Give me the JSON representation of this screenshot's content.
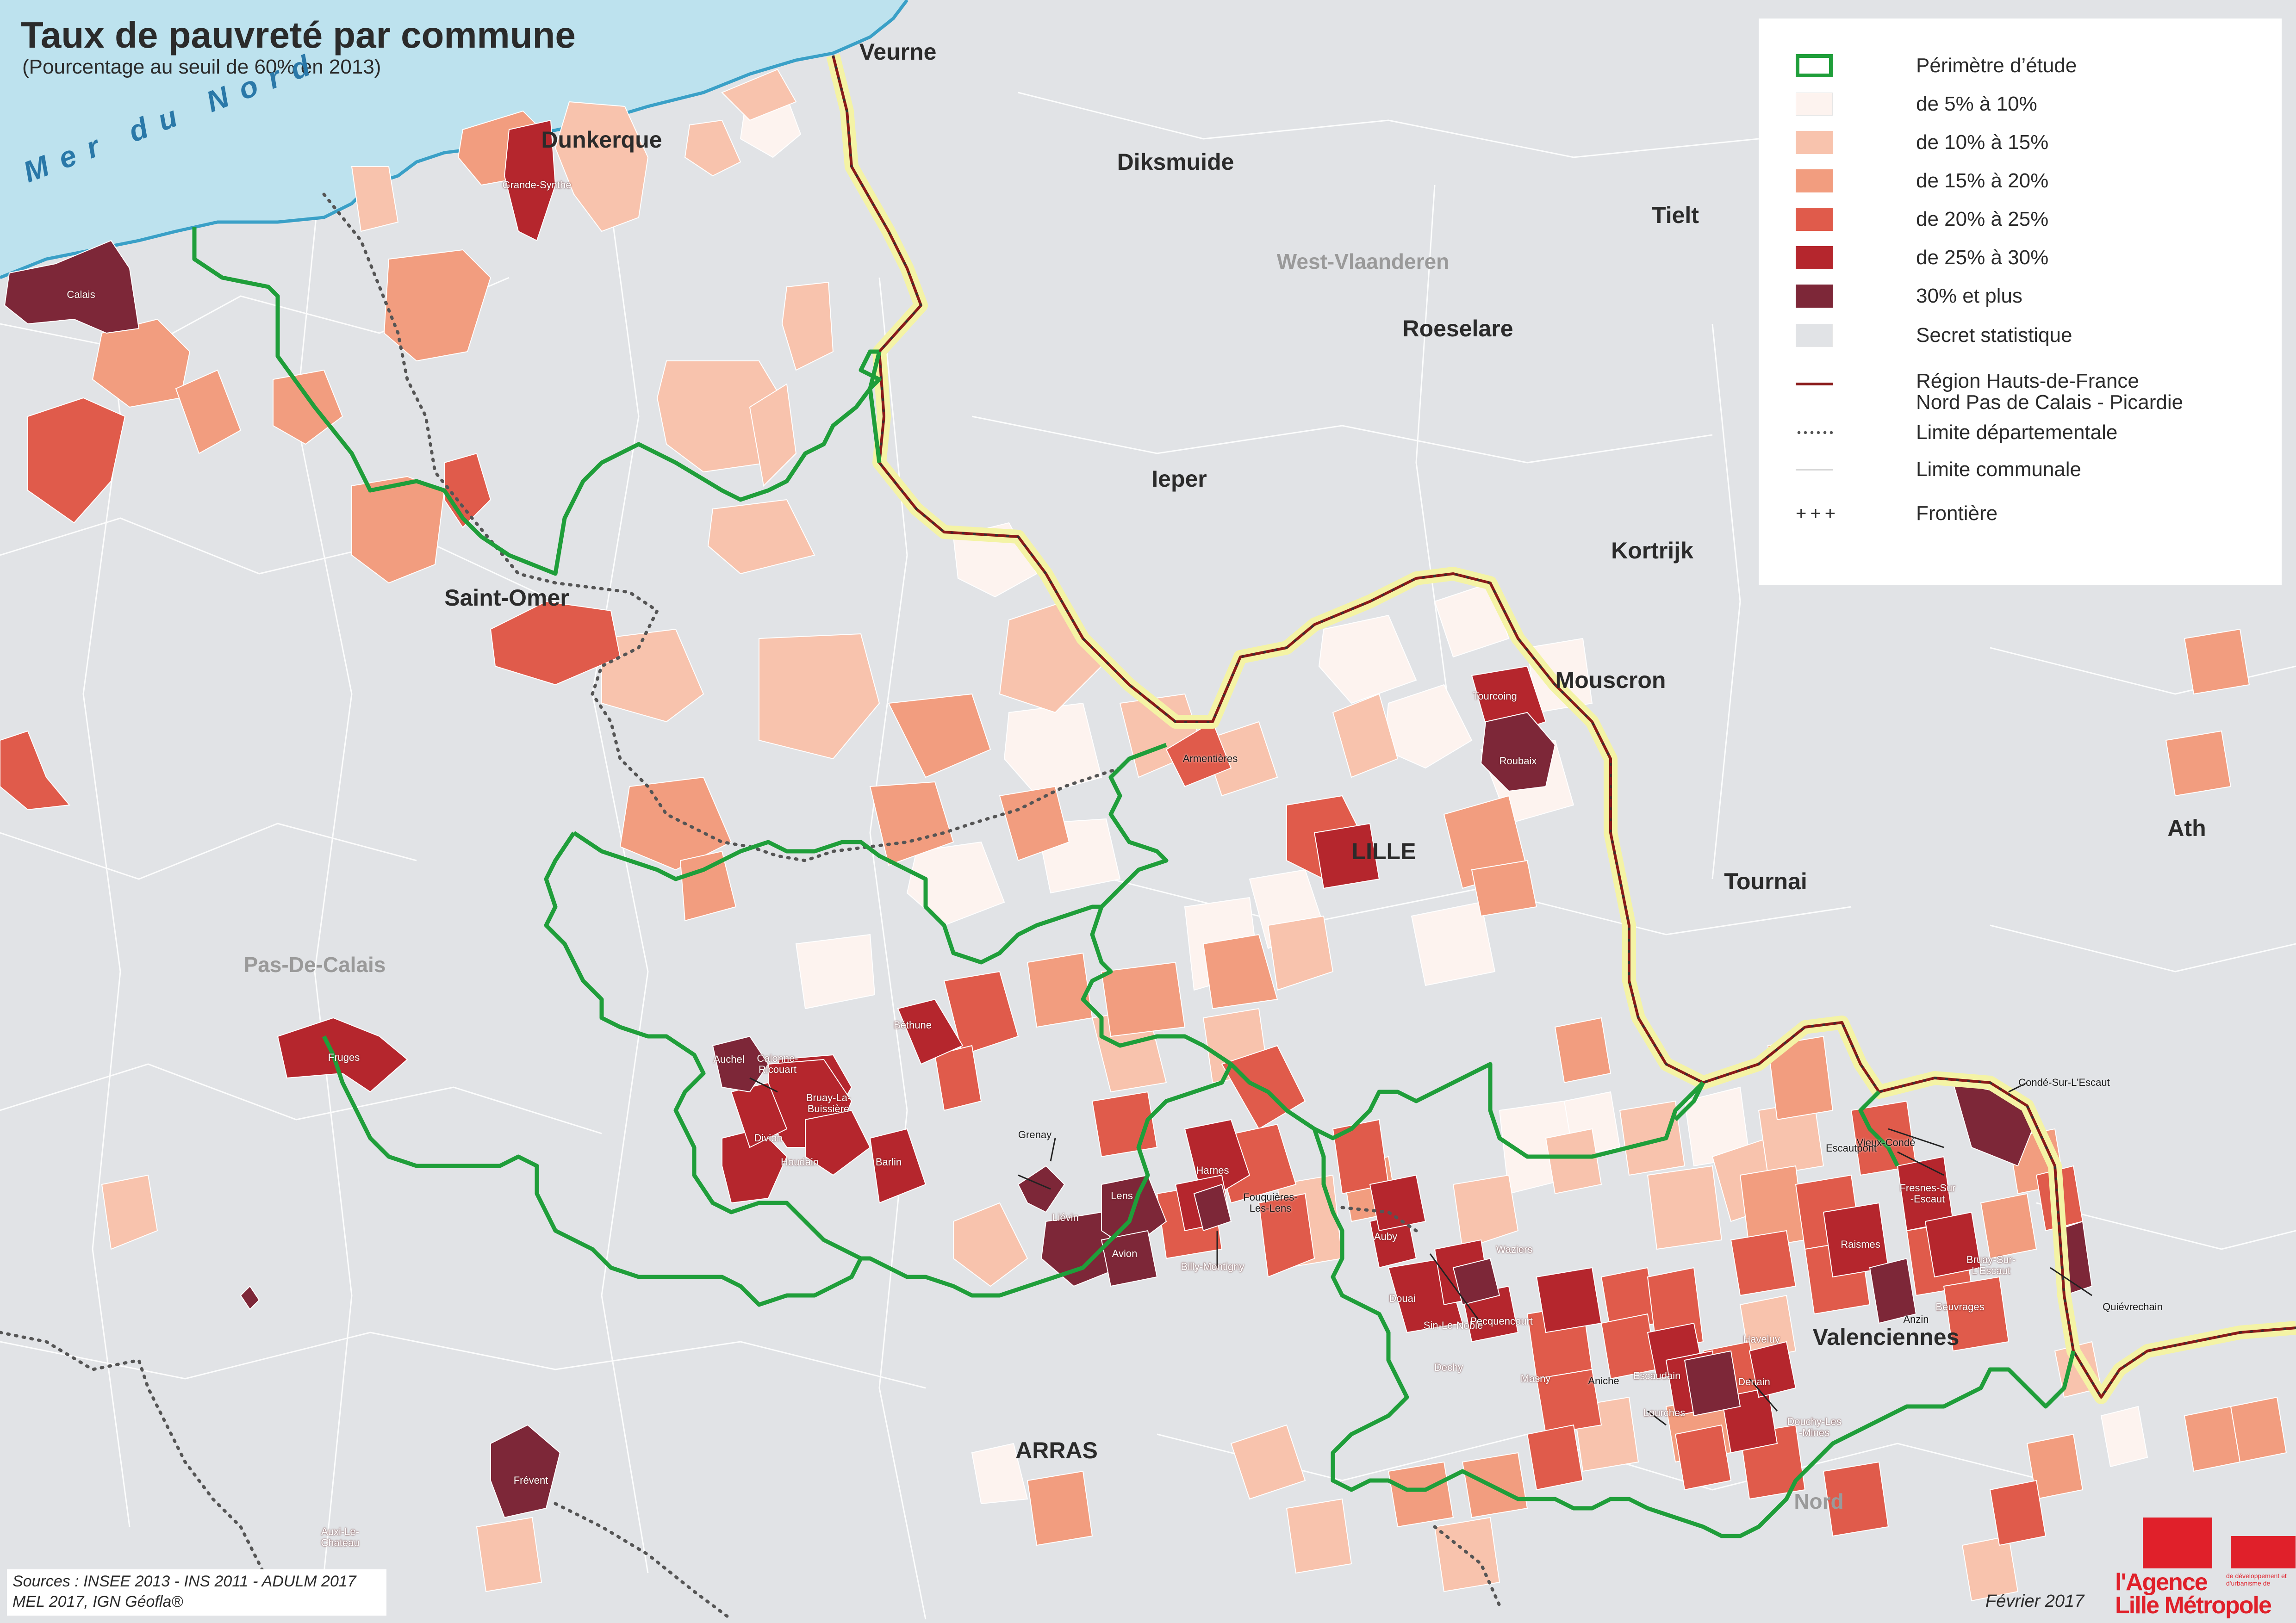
{
  "title": "Taux de pauvreté par commune",
  "subtitle": "(Pourcentage au seuil de 60% en 2013)",
  "colors": {
    "sea": "#bde2ee",
    "background": "#e1e3e6",
    "class_5_10": "#fdf3ef",
    "class_10_15": "#f8c3ad",
    "class_15_20": "#f29d7f",
    "class_20_25": "#e05b4b",
    "class_25_30": "#b5262d",
    "class_30_plus": "#7d2738",
    "secret": "#e1e3e6",
    "perimeter": "#1f9e3a",
    "region_border": "#8a1a1a",
    "frontier_glow": "#f4f3a5"
  },
  "legend": [
    {
      "key": "perimetre",
      "label": "Périmètre d’étude",
      "style": "perimeter"
    },
    {
      "key": "c1",
      "label": "de 5% à 10%",
      "style": "class_5_10"
    },
    {
      "key": "c2",
      "label": "de 10% à 15%",
      "style": "class_10_15"
    },
    {
      "key": "c3",
      "label": "de 15% à 20%",
      "style": "class_15_20"
    },
    {
      "key": "c4",
      "label": "de 20% à 25%",
      "style": "class_20_25"
    },
    {
      "key": "c5",
      "label": "de 25% à 30%",
      "style": "class_25_30"
    },
    {
      "key": "c6",
      "label": "30% et plus",
      "style": "class_30_plus"
    },
    {
      "key": "secret",
      "label": "Secret statistique",
      "style": "secret"
    },
    {
      "key": "region",
      "label": "Région Hauts-de-France",
      "label2": "Nord Pas de Calais - Picardie",
      "style": "line_region"
    },
    {
      "key": "dept",
      "label": "Limite départementale",
      "style": "line_dotted"
    },
    {
      "key": "communal",
      "label": "Limite communale",
      "style": "line_thin"
    },
    {
      "key": "frontiere",
      "label": "Frontière",
      "style": "line_cross"
    }
  ],
  "sea_label": "Mer du Nord",
  "big_labels": [
    "Veurne",
    "Dunkerque",
    "Diksmuide",
    "Tielt",
    "Roeselare",
    "Ieper",
    "Kortrijk",
    "Mouscron",
    "Saint-Omer",
    "LILLE",
    "Tournai",
    "Ath",
    "Valenciennes",
    "ARRAS"
  ],
  "region_labels": [
    "West-Vlaanderen",
    "Pas-De-Calais",
    "Nord"
  ],
  "small_labels": [
    "Grande-Synthe",
    "Calais",
    "Armentières",
    "Tourcoing",
    "Roubaix",
    "Auchel",
    "Calonne-\nRicouart",
    "Bruay-La-\nBuissière",
    "Divion",
    "Houdain",
    "Béthune",
    "Barlin",
    "Grenay",
    "Liévin",
    "Lens",
    "Avion",
    "Harnes",
    "Fouquières-\nLes-Lens",
    "Billy-Montigny",
    "Auby",
    "Waziers",
    "Douai",
    "Sin-Le-Noble",
    "Dechy",
    "Pecquencourt",
    "Masny",
    "Aniche",
    "Escaudain",
    "Denain",
    "Lourches",
    "Douchy-Les\n-Mines",
    "Haveluy",
    "Vieux-Condé",
    "Condé-Sur-L'Escaut",
    "Escautpont",
    "Fresnes-Sur\n-Escaut",
    "Raismes",
    "Bruay-Sur-\nL'Escaut",
    "Beuvrages",
    "Anzin",
    "Quiévrechain",
    "Fruges",
    "Frévent",
    "Auxi-Le-\nChateau"
  ],
  "sources_line1": "Sources : INSEE 2013 - INS 2011 - ADULM 2017",
  "sources_line2": "MEL 2017, IGN Géofla®",
  "date": "Février 2017",
  "logo_line1": "l'Agence",
  "logo_line2": "Lille Métropole",
  "logo_small": "de développement et d'urbanisme de"
}
